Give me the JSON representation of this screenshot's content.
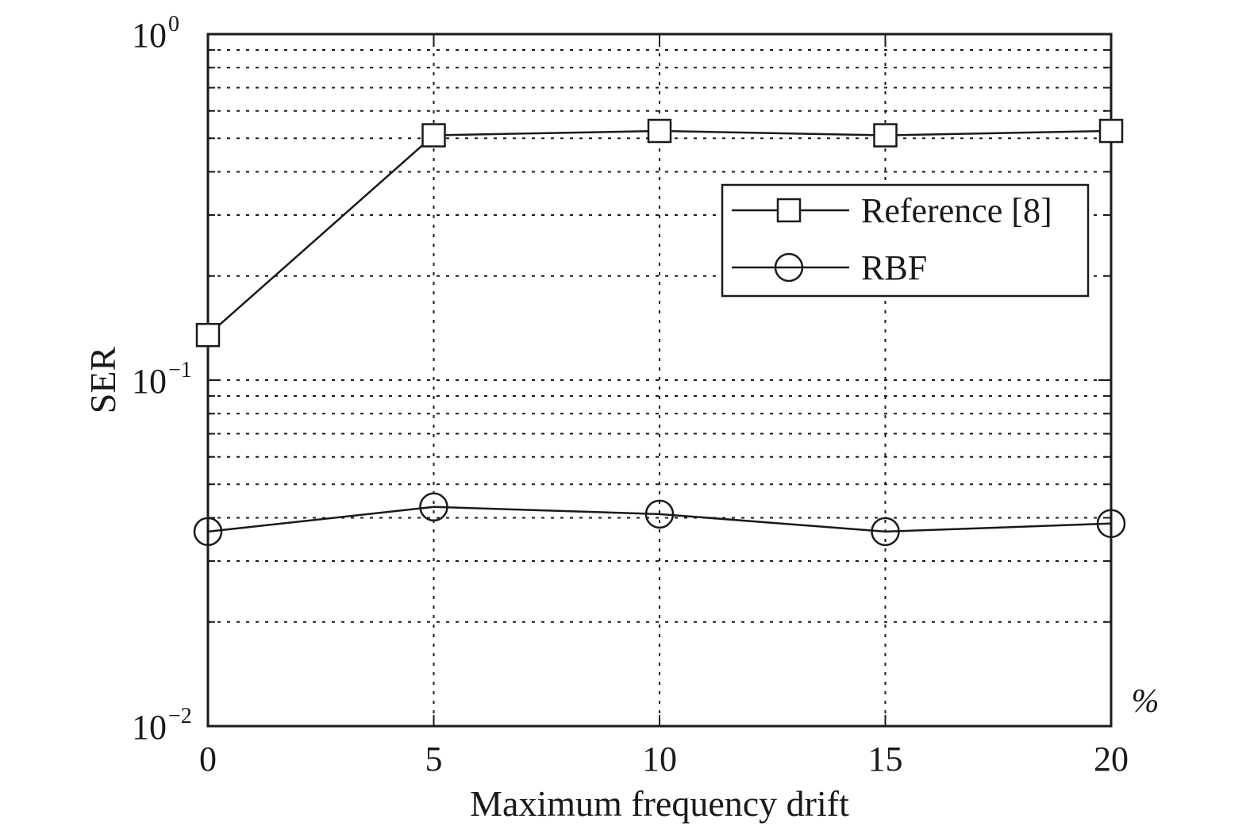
{
  "chart_data": {
    "type": "line",
    "title": "",
    "xlabel": "Maximum frequency drift",
    "ylabel": "SER",
    "x_unit": "%",
    "x": [
      0,
      5,
      10,
      15,
      20
    ],
    "x_ticks": [
      "0",
      "5",
      "10",
      "15",
      "20"
    ],
    "xlim": [
      0,
      20
    ],
    "y_scale": "log",
    "ylim": [
      0.01,
      1
    ],
    "y_ticks": [
      {
        "value": 1,
        "base": "10",
        "exp": "0"
      },
      {
        "value": 0.1,
        "base": "10",
        "exp": "−1"
      },
      {
        "value": 0.01,
        "base": "10",
        "exp": "−2"
      }
    ],
    "grid": true,
    "legend_position": "upper-right",
    "series": [
      {
        "name": "Reference [8]",
        "marker": "square",
        "color": "#1a1a1a",
        "values": [
          0.135,
          0.51,
          0.525,
          0.51,
          0.525
        ]
      },
      {
        "name": "RBF",
        "marker": "circle",
        "color": "#1a1a1a",
        "values": [
          0.0365,
          0.043,
          0.041,
          0.0365,
          0.0385
        ]
      }
    ]
  }
}
